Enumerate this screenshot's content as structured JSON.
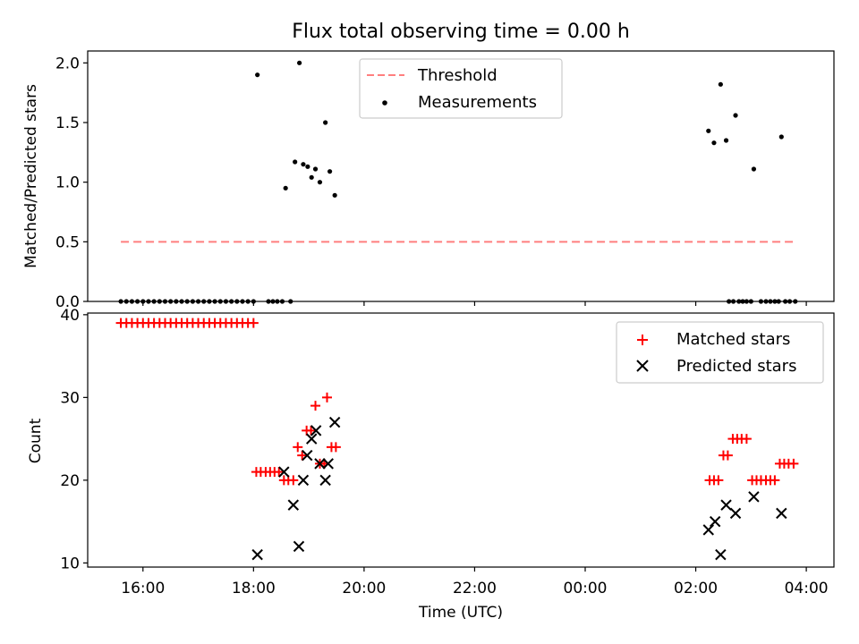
{
  "figure": {
    "title": "Flux total observing time = 0.00 h"
  },
  "chart_data": [
    {
      "type": "scatter",
      "panel": "top",
      "ylabel": "Matched/Predicted stars",
      "ylim": [
        0,
        2.1
      ],
      "yticks": [
        0.0,
        0.5,
        1.0,
        1.5,
        2.0
      ],
      "ytick_labels": [
        "0.0",
        "0.5",
        "1.0",
        "1.5",
        "2.0"
      ],
      "xlim": [
        15.0,
        28.5
      ],
      "xticks": [
        16,
        18,
        20,
        22,
        24,
        26,
        28
      ],
      "legend_position": "upper-center",
      "colors": {
        "threshold": "#ff7f7f",
        "measurements": "#000000"
      },
      "threshold": {
        "name": "Threshold",
        "y": 0.5,
        "x_start": 15.6,
        "x_end": 27.8,
        "style": "dashed"
      },
      "series": [
        {
          "name": "Measurements",
          "points": [
            [
              15.6,
              0
            ],
            [
              15.7,
              0
            ],
            [
              15.8,
              0
            ],
            [
              15.9,
              0
            ],
            [
              16.0,
              0
            ],
            [
              16.1,
              0
            ],
            [
              16.2,
              0
            ],
            [
              16.3,
              0
            ],
            [
              16.4,
              0
            ],
            [
              16.5,
              0
            ],
            [
              16.6,
              0
            ],
            [
              16.7,
              0
            ],
            [
              16.8,
              0
            ],
            [
              16.9,
              0
            ],
            [
              17.0,
              0
            ],
            [
              17.1,
              0
            ],
            [
              17.2,
              0
            ],
            [
              17.3,
              0
            ],
            [
              17.4,
              0
            ],
            [
              17.5,
              0
            ],
            [
              17.6,
              0
            ],
            [
              17.7,
              0
            ],
            [
              17.8,
              0
            ],
            [
              17.9,
              0
            ],
            [
              18.0,
              0
            ],
            [
              18.07,
              1.9
            ],
            [
              18.27,
              0
            ],
            [
              18.35,
              0
            ],
            [
              18.43,
              0
            ],
            [
              18.52,
              0
            ],
            [
              18.58,
              0.95
            ],
            [
              18.67,
              0
            ],
            [
              18.75,
              1.17
            ],
            [
              18.83,
              2.0
            ],
            [
              18.9,
              1.15
            ],
            [
              18.98,
              1.13
            ],
            [
              19.05,
              1.04
            ],
            [
              19.12,
              1.11
            ],
            [
              19.2,
              1.0
            ],
            [
              19.3,
              1.5
            ],
            [
              19.38,
              1.09
            ],
            [
              19.47,
              0.89
            ],
            [
              26.23,
              1.43
            ],
            [
              26.33,
              1.33
            ],
            [
              26.45,
              1.82
            ],
            [
              26.55,
              1.35
            ],
            [
              26.72,
              1.56
            ],
            [
              27.05,
              1.11
            ],
            [
              27.55,
              1.38
            ],
            [
              26.6,
              0
            ],
            [
              26.68,
              0
            ],
            [
              26.78,
              0
            ],
            [
              26.85,
              0
            ],
            [
              26.92,
              0
            ],
            [
              27.0,
              0
            ],
            [
              27.18,
              0
            ],
            [
              27.27,
              0
            ],
            [
              27.35,
              0
            ],
            [
              27.43,
              0
            ],
            [
              27.5,
              0
            ],
            [
              27.62,
              0
            ],
            [
              27.7,
              0
            ],
            [
              27.8,
              0
            ]
          ]
        }
      ]
    },
    {
      "type": "scatter",
      "panel": "bottom",
      "ylabel": "Count",
      "xlabel": "Time (UTC)",
      "ylim": [
        9.5,
        40.2
      ],
      "yticks": [
        10,
        20,
        30,
        40
      ],
      "ytick_labels": [
        "10",
        "20",
        "30",
        "40"
      ],
      "xlim": [
        15.0,
        28.5
      ],
      "xticks": [
        16,
        18,
        20,
        22,
        24,
        26,
        28
      ],
      "xtick_labels": [
        "16:00",
        "18:00",
        "20:00",
        "22:00",
        "00:00",
        "02:00",
        "04:00"
      ],
      "legend_position": "upper-right",
      "colors": {
        "matched": "#ff0000",
        "predicted": "#000000"
      },
      "series": [
        {
          "name": "Matched stars",
          "marker": "plus",
          "points": [
            [
              15.6,
              39
            ],
            [
              15.7,
              39
            ],
            [
              15.8,
              39
            ],
            [
              15.9,
              39
            ],
            [
              16.0,
              39
            ],
            [
              16.1,
              39
            ],
            [
              16.2,
              39
            ],
            [
              16.3,
              39
            ],
            [
              16.4,
              39
            ],
            [
              16.5,
              39
            ],
            [
              16.6,
              39
            ],
            [
              16.7,
              39
            ],
            [
              16.8,
              39
            ],
            [
              16.9,
              39
            ],
            [
              17.0,
              39
            ],
            [
              17.1,
              39
            ],
            [
              17.2,
              39
            ],
            [
              17.3,
              39
            ],
            [
              17.4,
              39
            ],
            [
              17.5,
              39
            ],
            [
              17.6,
              39
            ],
            [
              17.7,
              39
            ],
            [
              17.8,
              39
            ],
            [
              17.9,
              39
            ],
            [
              18.0,
              39
            ],
            [
              18.05,
              21
            ],
            [
              18.13,
              21
            ],
            [
              18.22,
              21
            ],
            [
              18.3,
              21
            ],
            [
              18.38,
              21
            ],
            [
              18.46,
              21
            ],
            [
              18.55,
              20
            ],
            [
              18.63,
              20
            ],
            [
              18.72,
              20
            ],
            [
              18.8,
              24
            ],
            [
              18.88,
              23
            ],
            [
              18.96,
              26
            ],
            [
              19.04,
              26
            ],
            [
              19.12,
              29
            ],
            [
              19.2,
              22
            ],
            [
              19.28,
              22
            ],
            [
              19.33,
              30
            ],
            [
              19.41,
              24
            ],
            [
              19.49,
              24
            ],
            [
              26.25,
              20
            ],
            [
              26.33,
              20
            ],
            [
              26.41,
              20
            ],
            [
              26.5,
              23
            ],
            [
              26.58,
              23
            ],
            [
              26.67,
              25
            ],
            [
              26.75,
              25
            ],
            [
              26.83,
              25
            ],
            [
              26.92,
              25
            ],
            [
              27.02,
              20
            ],
            [
              27.1,
              20
            ],
            [
              27.18,
              20
            ],
            [
              27.27,
              20
            ],
            [
              27.35,
              20
            ],
            [
              27.43,
              20
            ],
            [
              27.52,
              22
            ],
            [
              27.6,
              22
            ],
            [
              27.68,
              22
            ],
            [
              27.77,
              22
            ]
          ]
        },
        {
          "name": "Predicted stars",
          "marker": "x",
          "points": [
            [
              18.07,
              11
            ],
            [
              18.55,
              21
            ],
            [
              18.72,
              17
            ],
            [
              18.82,
              12
            ],
            [
              18.9,
              20
            ],
            [
              18.97,
              23
            ],
            [
              19.05,
              25
            ],
            [
              19.13,
              26
            ],
            [
              19.2,
              22
            ],
            [
              19.3,
              20
            ],
            [
              19.35,
              22
            ],
            [
              19.47,
              27
            ],
            [
              26.23,
              14
            ],
            [
              26.35,
              15
            ],
            [
              26.45,
              11
            ],
            [
              26.55,
              17
            ],
            [
              26.72,
              16
            ],
            [
              27.05,
              18
            ],
            [
              27.55,
              16
            ]
          ]
        }
      ]
    }
  ]
}
